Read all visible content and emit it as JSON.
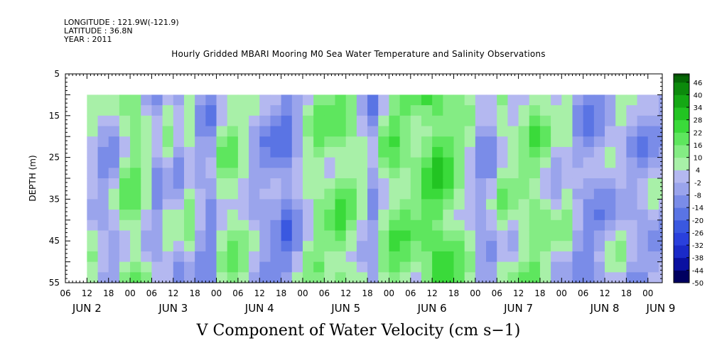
{
  "header": {
    "longitude": "LONGITUDE : 121.9W(-121.9)",
    "latitude": "LATITUDE : 36.8N",
    "year": "YEAR : 2011"
  },
  "chart_data": {
    "type": "heatmap",
    "title": "Hourly Gridded MBARI Mooring M0 Sea Water Temperature and Salinity Observations",
    "xlabel": "V Component of Water Velocity (cm s−1)",
    "ylabel": "DEPTH (m)",
    "y_axis": {
      "range": [
        5,
        55
      ],
      "inverted": true,
      "ticks": [
        5,
        15,
        25,
        35,
        45,
        55
      ]
    },
    "x_axis": {
      "range_hours": [
        0,
        162
      ],
      "hour_ticks": [
        {
          "h": 0,
          "label": "06"
        },
        {
          "h": 6,
          "label": "12"
        },
        {
          "h": 12,
          "label": "18"
        },
        {
          "h": 18,
          "label": "00"
        },
        {
          "h": 24,
          "label": "06"
        },
        {
          "h": 30,
          "label": "12"
        },
        {
          "h": 36,
          "label": "18"
        },
        {
          "h": 42,
          "label": "00"
        },
        {
          "h": 48,
          "label": "06"
        },
        {
          "h": 54,
          "label": "12"
        },
        {
          "h": 60,
          "label": "18"
        },
        {
          "h": 66,
          "label": "00"
        },
        {
          "h": 72,
          "label": "06"
        },
        {
          "h": 78,
          "label": "12"
        },
        {
          "h": 84,
          "label": "18"
        },
        {
          "h": 90,
          "label": "00"
        },
        {
          "h": 96,
          "label": "06"
        },
        {
          "h": 102,
          "label": "12"
        },
        {
          "h": 108,
          "label": "18"
        },
        {
          "h": 114,
          "label": "00"
        },
        {
          "h": 120,
          "label": "06"
        },
        {
          "h": 126,
          "label": "12"
        },
        {
          "h": 132,
          "label": "18"
        },
        {
          "h": 138,
          "label": "00"
        },
        {
          "h": 144,
          "label": "06"
        },
        {
          "h": 150,
          "label": "12"
        },
        {
          "h": 156,
          "label": "18"
        },
        {
          "h": 162,
          "label": "00"
        }
      ],
      "day_labels": [
        {
          "h": 6,
          "label": "JUN  2"
        },
        {
          "h": 30,
          "label": "JUN  3"
        },
        {
          "h": 54,
          "label": "JUN  4"
        },
        {
          "h": 78,
          "label": "JUN  5"
        },
        {
          "h": 102,
          "label": "JUN  6"
        },
        {
          "h": 126,
          "label": "JUN  7"
        },
        {
          "h": 150,
          "label": "JUN  8"
        },
        {
          "h": 166,
          "label": "JUN  9"
        }
      ]
    },
    "data_extent": {
      "hour_start": 6,
      "hour_end": 169,
      "depth_top": 10,
      "depth_bottom": 55
    },
    "colorbar": {
      "labels": [
        46,
        40,
        34,
        28,
        22,
        16,
        10,
        4,
        -2,
        -8,
        -14,
        -20,
        -26,
        -32,
        -38,
        -44,
        -50
      ],
      "min": -50,
      "max": 50
    },
    "columns": [
      {
        "h": 6,
        "v": 2
      },
      {
        "h": 9,
        "v": -4
      },
      {
        "h": 12,
        "v": -2
      },
      {
        "h": 15,
        "v": 10
      },
      {
        "h": 18,
        "v": 14
      },
      {
        "h": 21,
        "v": 4
      },
      {
        "h": 24,
        "v": -6
      },
      {
        "h": 27,
        "v": 2
      },
      {
        "h": 30,
        "v": -3
      },
      {
        "h": 33,
        "v": 6
      },
      {
        "h": 36,
        "v": -4
      },
      {
        "h": 39,
        "v": -7
      },
      {
        "h": 42,
        "v": 8
      },
      {
        "h": 45,
        "v": 12
      },
      {
        "h": 48,
        "v": 6
      },
      {
        "h": 51,
        "v": -2
      },
      {
        "h": 54,
        "v": -6
      },
      {
        "h": 57,
        "v": -8
      },
      {
        "h": 60,
        "v": -12
      },
      {
        "h": 63,
        "v": -4
      },
      {
        "h": 66,
        "v": 6
      },
      {
        "h": 69,
        "v": 12
      },
      {
        "h": 72,
        "v": 10
      },
      {
        "h": 75,
        "v": 16
      },
      {
        "h": 78,
        "v": 12
      },
      {
        "h": 81,
        "v": 4
      },
      {
        "h": 84,
        "v": -6
      },
      {
        "h": 87,
        "v": 8
      },
      {
        "h": 90,
        "v": 16
      },
      {
        "h": 93,
        "v": 14
      },
      {
        "h": 96,
        "v": 12
      },
      {
        "h": 99,
        "v": 18
      },
      {
        "h": 102,
        "v": 22
      },
      {
        "h": 105,
        "v": 18
      },
      {
        "h": 108,
        "v": 12
      },
      {
        "h": 111,
        "v": 4
      },
      {
        "h": 114,
        "v": -6
      },
      {
        "h": 117,
        "v": -4
      },
      {
        "h": 120,
        "v": 8
      },
      {
        "h": 123,
        "v": 6
      },
      {
        "h": 126,
        "v": 10
      },
      {
        "h": 129,
        "v": 14
      },
      {
        "h": 132,
        "v": 8
      },
      {
        "h": 135,
        "v": 2
      },
      {
        "h": 138,
        "v": 6
      },
      {
        "h": 141,
        "v": -4
      },
      {
        "h": 144,
        "v": -8
      },
      {
        "h": 147,
        "v": -6
      },
      {
        "h": 150,
        "v": -2
      },
      {
        "h": 153,
        "v": 2
      },
      {
        "h": 156,
        "v": -4
      },
      {
        "h": 159,
        "v": -6
      },
      {
        "h": 162,
        "v": -2
      },
      {
        "h": 165,
        "v": -4
      },
      {
        "h": 168,
        "v": -6
      }
    ]
  }
}
